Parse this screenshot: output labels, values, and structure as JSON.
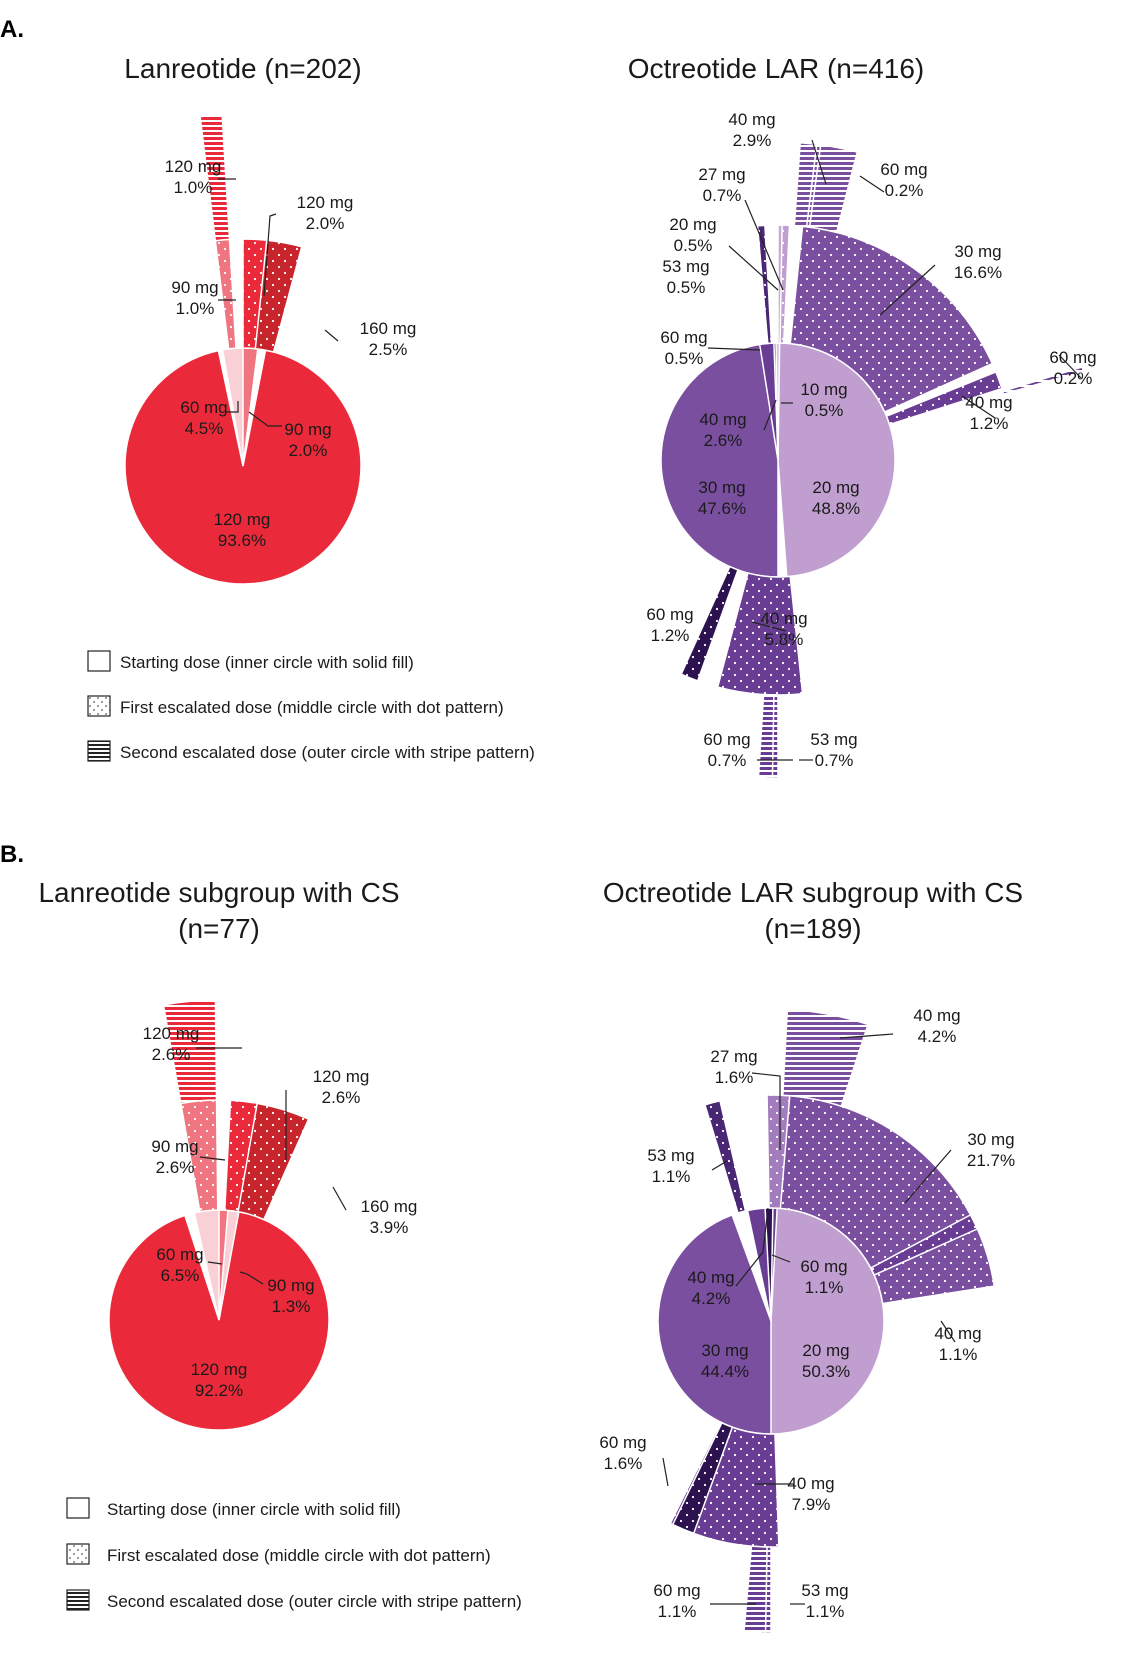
{
  "panels": [
    {
      "letter": "A."
    },
    {
      "letter": "B."
    }
  ],
  "legend": {
    "items": [
      {
        "text": "Starting dose (inner circle with solid fill)",
        "pattern": "solid"
      },
      {
        "text": "First escalated dose (middle circle with dot pattern)",
        "pattern": "dots"
      },
      {
        "text": "Second escalated dose (outer circle with stripe pattern)",
        "pattern": "stripes"
      }
    ]
  },
  "chart_data": [
    {
      "type": "pie",
      "subtype": "sunburst",
      "panel": "A.",
      "title": [
        "Lanreotide (n=202)"
      ],
      "colors": {
        "120 mg": "#ea2a3a",
        "90 mg": "#ef7580",
        "60 mg": "#f9d0d6",
        "160 mg": "#c8242c",
        "stroke": "#ffffff"
      },
      "segments": [
        {
          "ring": 1,
          "dose": "120 mg",
          "pct": 93.6,
          "label": [
            "120 mg",
            "93.6%"
          ],
          "color": "#ea2a3a"
        },
        {
          "ring": 1,
          "dose": "60 mg",
          "pct": 4.5,
          "label": [
            "60 mg",
            "4.5%"
          ],
          "color": "#f9d0d6"
        },
        {
          "ring": 1,
          "dose": "90 mg",
          "pct": 2.0,
          "label": [
            "90 mg",
            "2.0%"
          ],
          "color": "#ef7580"
        },
        {
          "ring": 2,
          "parent": "60 mg",
          "dose": "90 mg",
          "pct": 1.0,
          "label": [
            "90 mg",
            "1.0%"
          ],
          "color": "#ef7580"
        },
        {
          "ring": 2,
          "parent": "60 mg",
          "dose": "120 mg",
          "pct": 2.0,
          "label": [
            "120 mg",
            "2.0%"
          ],
          "color": "#ea2a3a"
        },
        {
          "ring": 2,
          "parent": "90 mg",
          "dose": "160 mg",
          "pct": 2.5,
          "label": [
            "160 mg",
            "2.5%"
          ],
          "color": "#c8242c"
        },
        {
          "ring": 3,
          "parent": "90 mg",
          "dose": "120 mg",
          "pct": 1.0,
          "label": [
            "120 mg",
            "1.0%"
          ],
          "color": "#ea2a3a"
        }
      ]
    },
    {
      "type": "pie",
      "subtype": "sunburst",
      "panel": "A.",
      "title": [
        "Octreotide LAR (n=416)"
      ],
      "colors": {
        "10 mg": "#d8c4e2",
        "20 mg": "#c19ed0",
        "27 mg": "#c6a8d6",
        "30 mg": "#7a4fa0",
        "40 mg": "#6a3d94",
        "53 mg": "#4a2775",
        "60 mg": "#2d1250"
      },
      "segments": [
        {
          "ring": 1,
          "dose": "20 mg",
          "pct": 48.8,
          "label": [
            "20 mg",
            "48.8%"
          ],
          "color": "#c19ed0"
        },
        {
          "ring": 1,
          "dose": "30 mg",
          "pct": 47.6,
          "label": [
            "30 mg",
            "47.6%"
          ],
          "color": "#7a4fa0"
        },
        {
          "ring": 1,
          "dose": "40 mg",
          "pct": 2.6,
          "label": [
            "40 mg",
            "2.6%"
          ],
          "color": "#6a3d94"
        },
        {
          "ring": 1,
          "dose": "60 mg",
          "pct": 0.5,
          "label": [
            "60 mg",
            "0.5%"
          ],
          "color": "#2d1250"
        },
        {
          "ring": 1,
          "dose": "10 mg",
          "pct": 0.5,
          "label": [
            "10 mg",
            "0.5%"
          ],
          "color": "#d8c4e2"
        },
        {
          "ring": 2,
          "parent": "20 mg",
          "dose": "30 mg",
          "pct": 16.6,
          "label": [
            "30 mg",
            "16.6%"
          ],
          "color": "#7a4fa0"
        },
        {
          "ring": 2,
          "parent": "20 mg",
          "dose": "40 mg",
          "pct": 1.2,
          "label": [
            "40 mg",
            "1.2%"
          ],
          "color": "#6a3d94"
        },
        {
          "ring": 2,
          "parent": "20 mg",
          "dose": "27 mg",
          "pct": 0.7,
          "label": [
            "27 mg",
            "0.7%"
          ],
          "color": "#c6a8d6"
        },
        {
          "ring": 2,
          "parent": "20 mg",
          "dose": "20 mg",
          "pct": 0.5,
          "label": [
            "20 mg",
            "0.5%"
          ],
          "color": "#c19ed0"
        },
        {
          "ring": 2,
          "parent": "30 mg",
          "dose": "40 mg",
          "pct": 5.8,
          "label": [
            "40 mg",
            "5.8%"
          ],
          "color": "#6a3d94"
        },
        {
          "ring": 2,
          "parent": "30 mg",
          "dose": "60 mg",
          "pct": 1.2,
          "label": [
            "60 mg",
            "1.2%"
          ],
          "color": "#2d1250"
        },
        {
          "ring": 2,
          "parent": "40 mg",
          "dose": "53 mg",
          "pct": 0.5,
          "label": [
            "53 mg",
            "0.5%"
          ],
          "color": "#4a2775"
        },
        {
          "ring": 3,
          "parent": "30 mg",
          "dose": "40 mg",
          "pct": 2.9,
          "label": [
            "40 mg",
            "2.9%"
          ],
          "color": "#7a4fa0"
        },
        {
          "ring": 3,
          "parent": "30 mg",
          "dose": "60 mg",
          "pct": 0.2,
          "label": [
            "60 mg",
            "0.2%"
          ],
          "color": "#7a4fa0"
        },
        {
          "ring": 3,
          "parent": "40 mg",
          "dose": "60 mg",
          "pct": 0.2,
          "label": [
            "60 mg",
            "0.2%"
          ],
          "color": "#6a3d94"
        },
        {
          "ring": 3,
          "parent": "40 mg",
          "dose": "60 mg",
          "pct": 0.7,
          "label": [
            "60 mg",
            "0.7%"
          ],
          "color": "#6a3d94"
        },
        {
          "ring": 3,
          "parent": "40 mg",
          "dose": "53 mg",
          "pct": 0.7,
          "label": [
            "53 mg",
            "0.7%"
          ],
          "color": "#6a3d94"
        }
      ]
    },
    {
      "type": "pie",
      "subtype": "sunburst",
      "panel": "B.",
      "title": [
        "Lanreotide subgroup with CS",
        "(n=77)"
      ],
      "colors": {
        "120 mg": "#ea2a3a",
        "90 mg": "#ef7580",
        "60 mg": "#f9d0d6",
        "160 mg": "#c8242c"
      },
      "segments": [
        {
          "ring": 1,
          "dose": "120 mg",
          "pct": 92.2,
          "label": [
            "120 mg",
            "92.2%"
          ],
          "color": "#ea2a3a"
        },
        {
          "ring": 1,
          "dose": "60 mg",
          "pct": 6.5,
          "label": [
            "60 mg",
            "6.5%"
          ],
          "color": "#f9d0d6"
        },
        {
          "ring": 1,
          "dose": "90 mg",
          "pct": 1.3,
          "label": [
            "90 mg",
            "1.3%"
          ],
          "color": "#ef7580"
        },
        {
          "ring": 2,
          "parent": "60 mg",
          "dose": "90 mg",
          "pct": 2.6,
          "label": [
            "90 mg",
            "2.6%"
          ],
          "color": "#ef7580"
        },
        {
          "ring": 2,
          "parent": "60 mg",
          "dose": "120 mg",
          "pct": 2.6,
          "label": [
            "120 mg",
            "2.6%"
          ],
          "color": "#ea2a3a"
        },
        {
          "ring": 2,
          "parent": "90 mg",
          "dose": "160 mg",
          "pct": 3.9,
          "label": [
            "160 mg",
            "3.9%"
          ],
          "color": "#c8242c"
        },
        {
          "ring": 3,
          "parent": "90 mg",
          "dose": "120 mg",
          "pct": 2.6,
          "label": [
            "120 mg",
            "2.6%"
          ],
          "color": "#ea2a3a"
        }
      ]
    },
    {
      "type": "pie",
      "subtype": "sunburst",
      "panel": "B.",
      "title": [
        "Octreotide LAR subgroup with CS",
        "(n=189)"
      ],
      "colors": {
        "20 mg": "#c19ed0",
        "27 mg": "#a27cbd",
        "30 mg": "#7a4fa0",
        "40 mg": "#6a3d94",
        "53 mg": "#4a2775",
        "60 mg": "#2d1250"
      },
      "segments": [
        {
          "ring": 1,
          "dose": "20 mg",
          "pct": 50.3,
          "label": [
            "20 mg",
            "50.3%"
          ],
          "color": "#c19ed0"
        },
        {
          "ring": 1,
          "dose": "30 mg",
          "pct": 44.4,
          "label": [
            "30 mg",
            "44.4%"
          ],
          "color": "#7a4fa0"
        },
        {
          "ring": 1,
          "dose": "40 mg",
          "pct": 4.2,
          "label": [
            "40 mg",
            "4.2%"
          ],
          "color": "#6a3d94"
        },
        {
          "ring": 1,
          "dose": "60 mg",
          "pct": 1.1,
          "label": [
            "60 mg",
            "1.1%"
          ],
          "color": "#2d1250"
        },
        {
          "ring": 2,
          "parent": "20 mg",
          "dose": "30 mg",
          "pct": 21.7,
          "label": [
            "30 mg",
            "21.7%"
          ],
          "color": "#7a4fa0"
        },
        {
          "ring": 2,
          "parent": "20 mg",
          "dose": "40 mg",
          "pct": 1.1,
          "label": [
            "40 mg",
            "1.1%"
          ],
          "color": "#6a3d94"
        },
        {
          "ring": 2,
          "parent": "20 mg",
          "dose": "27 mg",
          "pct": 1.6,
          "label": [
            "27 mg",
            "1.6%"
          ],
          "color": "#a27cbd"
        },
        {
          "ring": 2,
          "parent": "30 mg",
          "dose": "40 mg",
          "pct": 7.9,
          "label": [
            "40 mg",
            "7.9%"
          ],
          "color": "#6a3d94"
        },
        {
          "ring": 2,
          "parent": "30 mg",
          "dose": "60 mg",
          "pct": 1.6,
          "label": [
            "60 mg",
            "1.6%"
          ],
          "color": "#2d1250"
        },
        {
          "ring": 2,
          "parent": "40 mg",
          "dose": "53 mg",
          "pct": 1.1,
          "label": [
            "53 mg",
            "1.1%"
          ],
          "color": "#4a2775"
        },
        {
          "ring": 3,
          "parent": "30 mg",
          "dose": "40 mg",
          "pct": 4.2,
          "label": [
            "40 mg",
            "4.2%"
          ],
          "color": "#7a4fa0"
        },
        {
          "ring": 3,
          "parent": "40 mg",
          "dose": "60 mg",
          "pct": 1.1,
          "label": [
            "60 mg",
            "1.1%"
          ],
          "color": "#6a3d94"
        },
        {
          "ring": 3,
          "parent": "40 mg",
          "dose": "53 mg",
          "pct": 1.1,
          "label": [
            "53 mg",
            "1.1%"
          ],
          "color": "#6a3d94"
        }
      ]
    }
  ]
}
